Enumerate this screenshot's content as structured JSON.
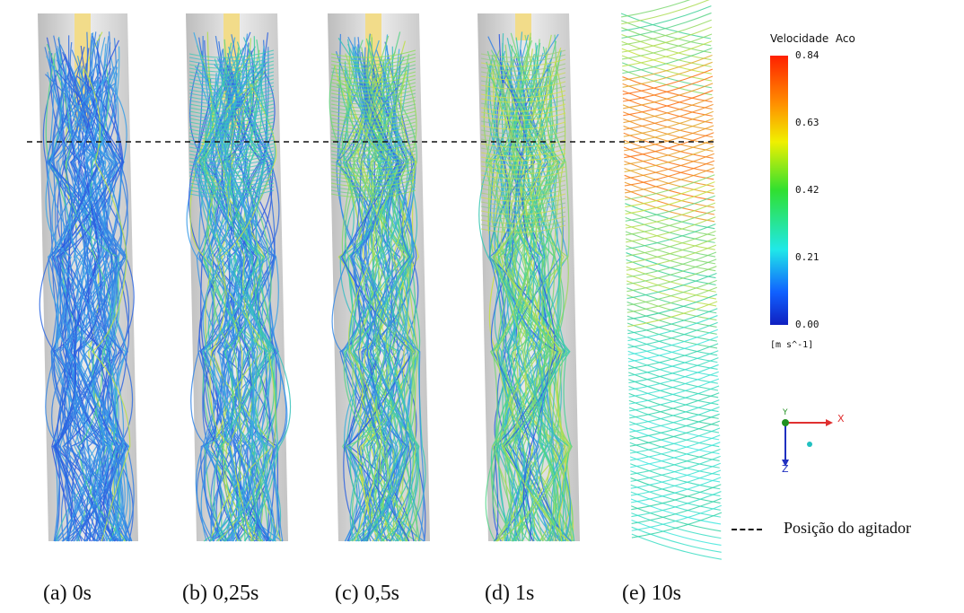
{
  "panels": [
    {
      "label": "(a)",
      "time": "0s"
    },
    {
      "label": "(b)",
      "time": "0,25s"
    },
    {
      "label": "(c)",
      "time": "0,5s"
    },
    {
      "label": "(d)",
      "time": "1s"
    },
    {
      "label": "(e)",
      "time": "10s"
    }
  ],
  "colorbar": {
    "title": "Velocidade  Aco",
    "ticks": [
      "0.84",
      "0.63",
      "0.42",
      "0.21",
      "0.00"
    ],
    "unit": "[m s^-1]",
    "colors": [
      "#ff2000",
      "#ffb000",
      "#f2f000",
      "#30e030",
      "#20e8e8",
      "#1060ff",
      "#1020c0"
    ]
  },
  "axes": {
    "x": "X",
    "z": "Z",
    "y": "Y"
  },
  "reference_line": {
    "label": "Posição do agitador"
  },
  "streamline_palette": {
    "low": "#2a55e0",
    "mid_low": "#3aa8e8",
    "mid": "#34d0a0",
    "mid_high": "#c8e040",
    "high": "#ff6a10",
    "pipe": "#d8d8d8",
    "shaft": "#f2dc8a"
  }
}
